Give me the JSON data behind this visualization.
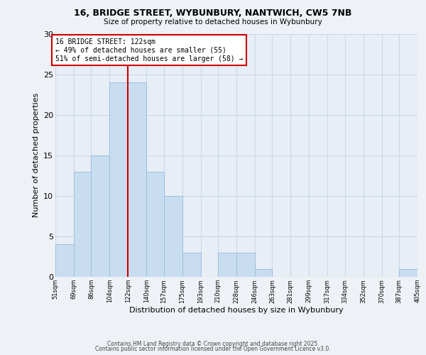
{
  "title": "16, BRIDGE STREET, WYBUNBURY, NANTWICH, CW5 7NB",
  "subtitle": "Size of property relative to detached houses in Wybunbury",
  "xlabel": "Distribution of detached houses by size in Wybunbury",
  "ylabel": "Number of detached properties",
  "bin_edges": [
    51,
    69,
    86,
    104,
    122,
    140,
    157,
    175,
    193,
    210,
    228,
    246,
    263,
    281,
    299,
    317,
    334,
    352,
    370,
    387,
    405
  ],
  "bar_heights": [
    4,
    13,
    15,
    24,
    24,
    13,
    10,
    3,
    0,
    3,
    3,
    1,
    0,
    0,
    0,
    0,
    0,
    0,
    0,
    1
  ],
  "tick_labels": [
    "51sqm",
    "69sqm",
    "86sqm",
    "104sqm",
    "122sqm",
    "140sqm",
    "157sqm",
    "175sqm",
    "193sqm",
    "210sqm",
    "228sqm",
    "246sqm",
    "263sqm",
    "281sqm",
    "299sqm",
    "317sqm",
    "334sqm",
    "352sqm",
    "370sqm",
    "387sqm",
    "405sqm"
  ],
  "bar_color": "#c9ddf0",
  "bar_edge_color": "#9bbfe0",
  "grid_color": "#c8d8e8",
  "vline_x": 122,
  "vline_color": "#cc0000",
  "annotation_box_title": "16 BRIDGE STREET: 122sqm",
  "annotation_line1": "← 49% of detached houses are smaller (55)",
  "annotation_line2": "51% of semi-detached houses are larger (58) →",
  "annotation_box_edge_color": "#cc0000",
  "ylim": [
    0,
    30
  ],
  "yticks": [
    0,
    5,
    10,
    15,
    20,
    25,
    30
  ],
  "footer_line1": "Contains HM Land Registry data © Crown copyright and database right 2025.",
  "footer_line2": "Contains public sector information licensed under the Open Government Licence v3.0.",
  "background_color": "#eef2f7",
  "plot_background_color": "#e8eef5"
}
